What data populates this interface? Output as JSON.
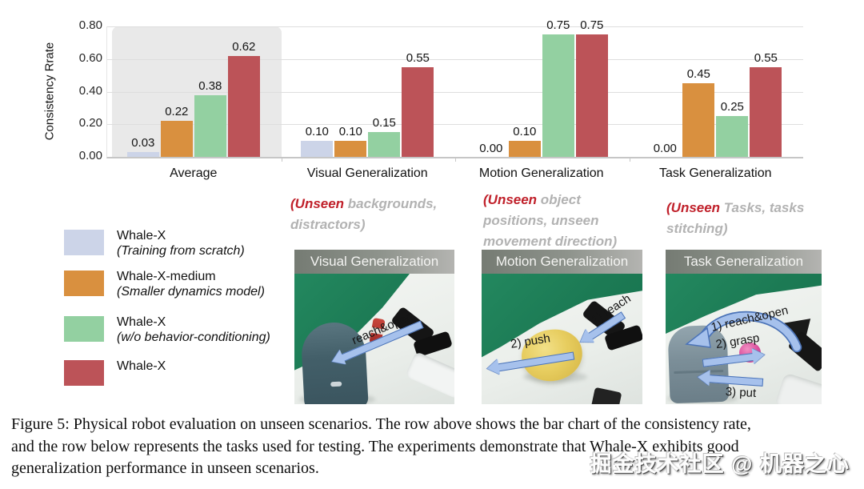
{
  "chart_data": {
    "type": "bar",
    "title": "",
    "ylabel": "Consistency Rrate",
    "ylim": [
      0,
      0.8
    ],
    "yticks": [
      0.0,
      0.2,
      0.4,
      0.6,
      0.8
    ],
    "grid": true,
    "legend_position": "bottom-left",
    "highlight_category": "Average",
    "categories": [
      "Average",
      "Visual Generalization",
      "Motion Generalization",
      "Task Generalization"
    ],
    "series": [
      {
        "name": "Whale-X (Training from scratch)",
        "color": "#ccd4e8",
        "values": [
          0.03,
          0.1,
          0.0,
          0.0
        ]
      },
      {
        "name": "Whale-X-medium (Smaller dynamics model)",
        "color": "#d9903f",
        "values": [
          0.22,
          0.1,
          0.1,
          0.45
        ]
      },
      {
        "name": "Whale-X (w/o behavior-conditioning)",
        "color": "#93d0a1",
        "values": [
          0.38,
          0.15,
          0.75,
          0.25
        ]
      },
      {
        "name": "Whale-X",
        "color": "#bc5358",
        "values": [
          0.62,
          0.55,
          0.75,
          0.55
        ]
      }
    ]
  },
  "legend": {
    "items": [
      {
        "label": "Whale-X",
        "sublabel": "(Training from scratch)",
        "color": "#ccd4e8"
      },
      {
        "label": "Whale-X-medium",
        "sublabel": "(Smaller dynamics model)",
        "color": "#d9903f"
      },
      {
        "label": "Whale-X",
        "sublabel": "(w/o behavior-conditioning)",
        "color": "#93d0a1"
      },
      {
        "label": "Whale-X",
        "sublabel": "",
        "color": "#bc5358"
      }
    ]
  },
  "annotations": [
    {
      "red": "(Unseen",
      "rest1": " backgrounds,",
      "line2": "distractors)",
      "line3": ""
    },
    {
      "red": "(Unseen",
      "rest1": " object",
      "line2": "positions, unseen",
      "line3": "movement direction)"
    },
    {
      "red": "(Unseen",
      "rest1": " Tasks, tasks",
      "line2": "stitching)",
      "line3": ""
    }
  ],
  "photos": [
    {
      "title": "Visual Generalization",
      "arrows": [
        "reach&open"
      ]
    },
    {
      "title": "Motion Generalization",
      "arrows": [
        "1) reach",
        "2) push"
      ]
    },
    {
      "title": "Task Generalization",
      "arrows": [
        "1) reach&open",
        "2) grasp",
        "3) put"
      ]
    }
  ],
  "caption": {
    "lines": [
      "Figure 5: Physical robot evaluation on unseen scenarios. The row above shows the bar chart of the consistency rate,",
      "and the row below represents the tasks used for testing. The experiments demonstrate that Whale-X exhibits good",
      "generalization performance in unseen scenarios."
    ]
  },
  "watermark": {
    "text": "掘金技术社区 @ 机器之心"
  }
}
